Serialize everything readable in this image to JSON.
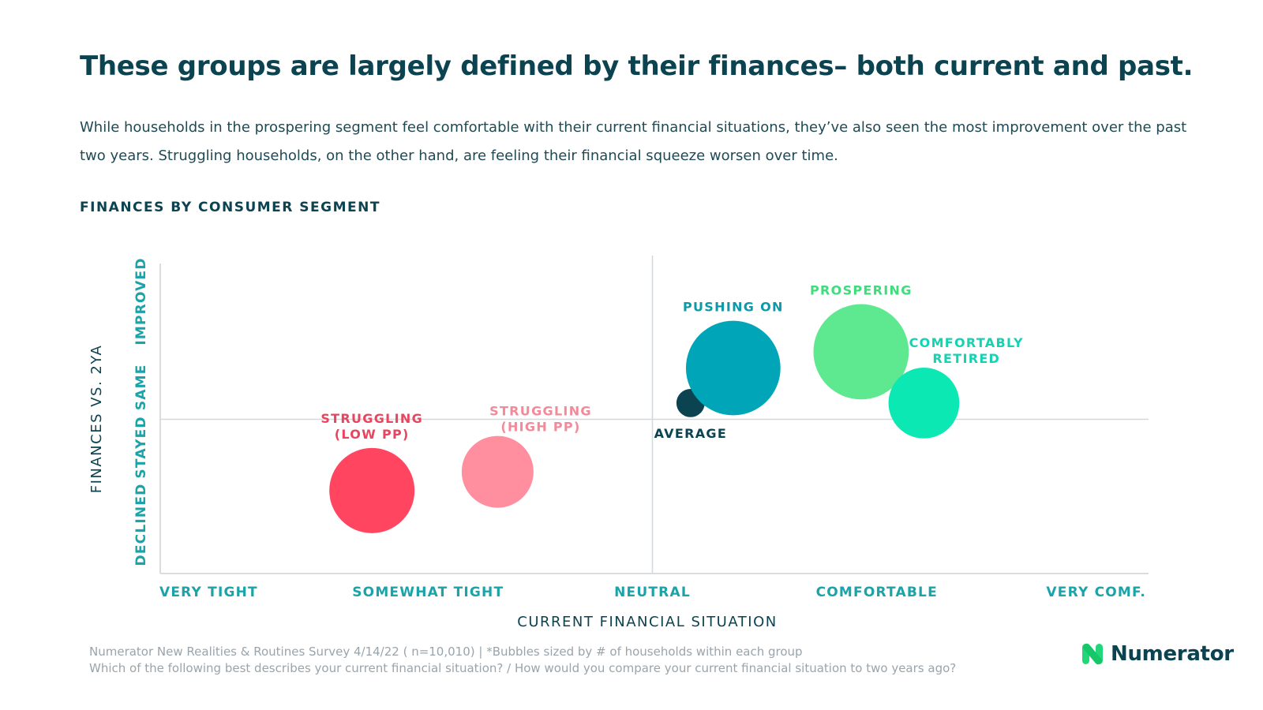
{
  "title": "These groups are largely defined by their finances– both current and past.",
  "subtitle": "While households in the prospering segment feel comfortable with their current financial situations, they’ve also seen the most improvement over the past two years. Struggling households, on the other hand, are feeling their financial squeeze worsen over time.",
  "section_label": "FINANCES BY CONSUMER SEGMENT",
  "colors": {
    "title": "#0b4350",
    "axis_ticks": "#1aa3a8",
    "struggling_low": "#ff4560",
    "struggling_high": "#ff8e9e",
    "pushing_on": "#00a6b8",
    "prospering": "#5ee88f",
    "comfortably_retired": "#0ce8b4",
    "average": "#0b4350"
  },
  "chart_data": {
    "type": "scatter",
    "subtype": "bubble",
    "xlabel": "CURRENT FINANCIAL SITUATION",
    "ylabel": "FINANCES VS. 2YA",
    "x_categories": [
      "VERY TIGHT",
      "SOMEWHAT TIGHT",
      "NEUTRAL",
      "COMFORTABLE",
      "VERY COMF."
    ],
    "y_categories": [
      "DECLINED",
      "STAYED SAME",
      "IMPROVED"
    ],
    "xlim": [
      1,
      5
    ],
    "ylim": [
      1,
      3
    ],
    "reference_lines": {
      "x": 3,
      "y": 2
    },
    "grid": false,
    "series": [
      {
        "name": "STRUGGLING\n(LOW PP)",
        "x": 1.75,
        "y": 1.43,
        "size": 1.0,
        "color": "#ff4560",
        "label_position": "above",
        "label_color": "#e8455e"
      },
      {
        "name": "STRUGGLING\n(HIGH PP)",
        "x": 2.31,
        "y": 1.58,
        "size": 0.71,
        "color": "#ff8e9e",
        "label_position": "above-right",
        "label_color": "#f28a99"
      },
      {
        "name": "AVERAGE",
        "x": 3.17,
        "y": 2.13,
        "size": 0.11,
        "color": "#0b4350",
        "label_position": "below",
        "label_color": "#0b4350"
      },
      {
        "name": "PUSHING ON",
        "x": 3.36,
        "y": 2.41,
        "size": 1.23,
        "color": "#00a6b8",
        "label_position": "above",
        "label_color": "#0b9aaa"
      },
      {
        "name": "PROSPERING",
        "x": 3.93,
        "y": 2.54,
        "size": 1.25,
        "color": "#5ee88f",
        "label_position": "above",
        "label_color": "#3fdc7c"
      },
      {
        "name": "COMFORTABLY\nRETIRED",
        "x": 4.21,
        "y": 2.13,
        "size": 0.69,
        "color": "#0ce8b4",
        "label_position": "above-right",
        "label_color": "#14d3b1"
      }
    ]
  },
  "footnote": {
    "line1": "Numerator New Realities & Routines Survey 4/14/22 ( n=10,010) | *Bubbles sized by # of households within each group",
    "line2": "Which of the following best describes your current financial situation? / How would you compare your current financial situation to two years ago?"
  },
  "logo": {
    "text": "Numerator",
    "icon": "numerator-logo-icon"
  }
}
